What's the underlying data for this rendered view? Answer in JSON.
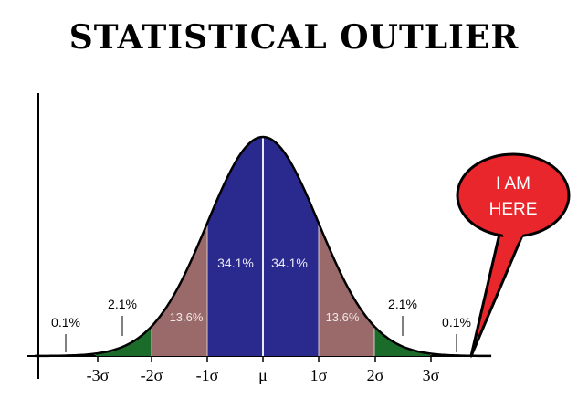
{
  "meme": {
    "title": "STATISTICAL OUTLIER",
    "callout": [
      "I AM",
      "HERE"
    ]
  },
  "chart_data": {
    "type": "area",
    "title": "",
    "xlabel": "",
    "ylabel": "",
    "x_ticks": [
      "-3σ",
      "-2σ",
      "-1σ",
      "μ",
      "1σ",
      "2σ",
      "3σ"
    ],
    "regions": [
      {
        "from": "-1σ",
        "to": "μ",
        "percent": "34.1%",
        "color": "#2a2a8e"
      },
      {
        "from": "μ",
        "to": "1σ",
        "percent": "34.1%",
        "color": "#2a2a8e"
      },
      {
        "from": "-2σ",
        "to": "-1σ",
        "percent": "13.6%",
        "color": "#9a6a6a"
      },
      {
        "from": "1σ",
        "to": "2σ",
        "percent": "13.6%",
        "color": "#9a6a6a"
      },
      {
        "from": "-3σ",
        "to": "-2σ",
        "percent": "2.1%",
        "color": "#1b6b2b"
      },
      {
        "from": "2σ",
        "to": "3σ",
        "percent": "2.1%",
        "color": "#1b6b2b"
      },
      {
        "from": "-∞",
        "to": "-3σ",
        "percent": "0.1%",
        "color": "#ffffff"
      },
      {
        "from": "3σ",
        "to": "∞",
        "percent": "0.1%",
        "color": "#ffffff"
      }
    ],
    "colors": {
      "center": "#2a2a8e",
      "middle": "#9a6a6a",
      "tail": "#1b6b2b",
      "bubble": "#e8262b"
    }
  }
}
